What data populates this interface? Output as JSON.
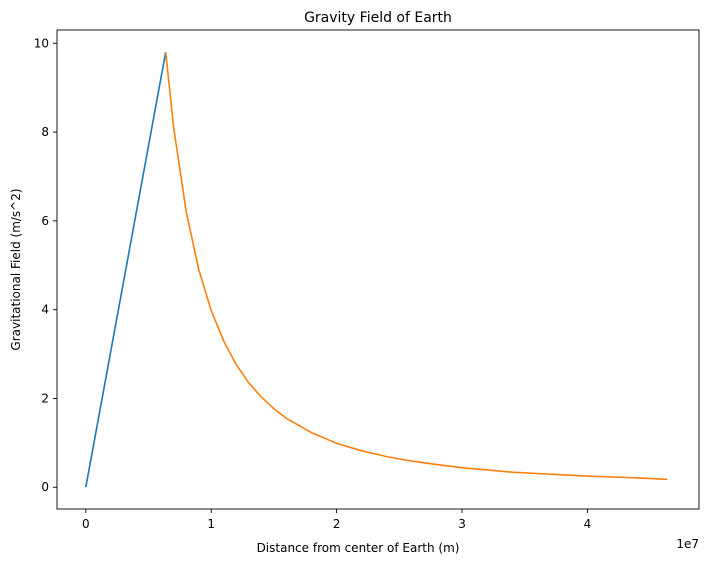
{
  "chart_data": {
    "type": "line",
    "title": "Gravity Field of Earth",
    "xlabel": "Distance from center of Earth (m)",
    "ylabel": "Gravitational Field (m/s^2)",
    "x_offset_text": "1e7",
    "xlim": [
      -0.23,
      4.89
    ],
    "ylim": [
      -0.49,
      10.3
    ],
    "x_ticks": [
      0,
      1,
      2,
      3,
      4
    ],
    "x_tick_labels": [
      "0",
      "1",
      "2",
      "3",
      "4"
    ],
    "y_ticks": [
      0,
      2,
      4,
      6,
      8,
      10
    ],
    "y_tick_labels": [
      "0",
      "2",
      "4",
      "6",
      "8",
      "10"
    ],
    "grid": false,
    "legend": "none",
    "series": [
      {
        "color": "#1f77b4",
        "x": [
          0,
          0.637
        ],
        "y": [
          0,
          9.8
        ]
      },
      {
        "color": "#ff7f0e",
        "x": [
          0.637,
          0.7,
          0.8,
          0.9,
          1.0,
          1.1,
          1.2,
          1.3,
          1.4,
          1.5,
          1.6,
          1.8,
          2.0,
          2.2,
          2.4,
          2.6,
          2.8,
          3.0,
          3.2,
          3.4,
          3.6,
          3.8,
          4.0,
          4.2,
          4.4,
          4.637
        ],
        "y": [
          9.8,
          8.11,
          6.21,
          4.91,
          3.98,
          3.29,
          2.76,
          2.35,
          2.03,
          1.77,
          1.55,
          1.23,
          0.99,
          0.82,
          0.69,
          0.59,
          0.51,
          0.44,
          0.39,
          0.34,
          0.31,
          0.28,
          0.25,
          0.23,
          0.21,
          0.18
        ]
      }
    ]
  }
}
